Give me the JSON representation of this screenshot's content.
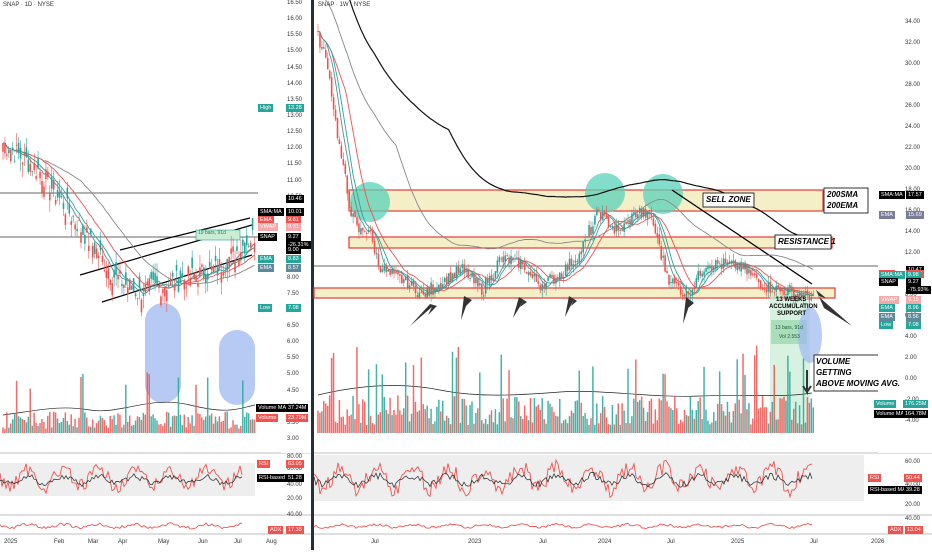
{
  "left_pane": {
    "header": "SNAP · 1D · NYSE",
    "price_axis_ticks": [
      "16.50",
      "16.00",
      "15.50",
      "15.00",
      "14.50",
      "14.00",
      "13.50",
      "13.00",
      "12.50",
      "12.00",
      "11.50",
      "11.00",
      "10.50",
      "10.00",
      "9.50",
      "9.00",
      "8.50",
      "8.00",
      "7.50",
      "7.00",
      "6.50",
      "6.00",
      "5.50",
      "5.00",
      "4.50",
      "4.00",
      "3.50",
      "3.00"
    ],
    "price_axis_range": [
      3.0,
      16.5
    ],
    "badges": [
      {
        "label": "High",
        "value": "13.28",
        "price": 13.28,
        "color": "#26a69a"
      },
      {
        "label": "",
        "value": "10.46",
        "price": 10.46,
        "color": "#000000"
      },
      {
        "label": "SMA:MA",
        "value": "10.01",
        "price": 10.05,
        "color": "#000000"
      },
      {
        "label": "EMA",
        "value": "9.81",
        "price": 9.82,
        "color": "#ef5350"
      },
      {
        "label": "VWAP",
        "value": "9.31",
        "price": 9.6,
        "color": "#f7a8a8"
      },
      {
        "label": "SNAP",
        "value": "9.27",
        "price": 9.3,
        "color": "#000000"
      },
      {
        "label": "",
        "value": "-26.31%",
        "price": 9.05,
        "color": "#000000"
      },
      {
        "label": "",
        "value": "9.00",
        "price": 8.88,
        "color": "#000000"
      },
      {
        "label": "EMA",
        "value": "8.83",
        "price": 8.6,
        "color": "#26a69a"
      },
      {
        "label": "EMA",
        "value": "8.57",
        "price": 8.33,
        "color": "#5c8a99"
      },
      {
        "label": "Low",
        "value": "7.08",
        "price": 7.08,
        "color": "#26a69a"
      }
    ],
    "volume_badges": [
      {
        "label": "Volume MA",
        "value": "37.24M",
        "color": "#000000"
      },
      {
        "label": "Volume",
        "value": "23.79M",
        "color": "#ef5350"
      }
    ],
    "time_axis": [
      "2025",
      "Feb",
      "Mar",
      "Apr",
      "May",
      "Jun",
      "Jul",
      "Aug"
    ],
    "rsi_ticks": [
      "80.00",
      "60.00",
      "40.00",
      "20.00"
    ],
    "rsi_badges": [
      {
        "label": "RSI",
        "value": "63.05",
        "color": "#ef5350"
      },
      {
        "label": "RSI-based MA",
        "value": "51.28",
        "color": "#000000"
      }
    ],
    "adx_ticks": [
      "40.00",
      "20.00"
    ],
    "adx_badge": {
      "label": "ADX",
      "value": "17.38",
      "color": "#ef5350"
    },
    "wedge_label": "19 bars, 91d"
  },
  "right_pane": {
    "header": "SNAP · 1W · NYSE",
    "price_axis_ticks": [
      "34.00",
      "32.00",
      "30.00",
      "28.00",
      "26.00",
      "24.00",
      "22.00",
      "20.00",
      "18.00",
      "16.00",
      "14.00",
      "12.00",
      "10.00",
      "8.00",
      "6.00",
      "4.00",
      "2.00",
      "0.00",
      "-2.00",
      "-4.00"
    ],
    "price_axis_range": [
      -4.0,
      35.0
    ],
    "badges": [
      {
        "label": "SMA:MA",
        "value": "17.57",
        "price": 17.57,
        "color": "#000000"
      },
      {
        "label": "EMA",
        "value": "15.69",
        "price": 15.69,
        "color": "#7b7b9a"
      },
      {
        "label": "",
        "value": "10.47",
        "price": 10.47,
        "color": "#000000"
      },
      {
        "label": "EMA",
        "value": "10.07",
        "price": 10.07,
        "color": "#ef5350"
      },
      {
        "label": "SMA:MA",
        "value": "9.98",
        "price": 9.98,
        "color": "#26a69a"
      },
      {
        "label": "SNAP",
        "value": "9.27",
        "price": 9.27,
        "color": "#000000"
      },
      {
        "label": "",
        "value": "-75.93%",
        "price": 8.55,
        "color": "#000000"
      },
      {
        "label": "VWAP",
        "value": "9.15",
        "price": 7.65,
        "color": "#f7a8a8"
      },
      {
        "label": "EMA",
        "value": "8.96",
        "price": 6.8,
        "color": "#26a69a"
      },
      {
        "label": "EMA",
        "value": "8.56",
        "price": 6.0,
        "color": "#5c8a99"
      },
      {
        "label": "Low",
        "value": "7.08",
        "price": 5.2,
        "color": "#26a69a"
      }
    ],
    "volume_badges": [
      {
        "label": "Volume",
        "value": "176.25M",
        "color": "#26a69a"
      },
      {
        "label": "Volume MA",
        "value": "164.78M",
        "color": "#000000"
      }
    ],
    "time_axis": [
      "Jul",
      "2023",
      "Jul",
      "2024",
      "Jul",
      "2025",
      "Jul",
      "2026"
    ],
    "rsi_ticks": [
      "60.00",
      "40.00",
      "20.00"
    ],
    "rsi_badges": [
      {
        "label": "RSI",
        "value": "50.44",
        "color": "#ef5350"
      },
      {
        "label": "RSI-based MA",
        "value": "39.28",
        "color": "#000000"
      }
    ],
    "adx_ticks": [
      "40.00"
    ],
    "adx_badge": {
      "label": "ADX",
      "value": "13.04",
      "color": "#ef5350"
    },
    "annotations": {
      "sell_zone": "SELL ZONE",
      "ma_label_1": "200SMA",
      "ma_label_2": "200EMA",
      "resistance": "RESISTANCE 1",
      "accumulation_1": "13 WEEKS",
      "accumulation_2": "ACCUMULATION",
      "accumulation_3": "SUPPORT",
      "bars_label_1": "13 bars, 91d",
      "bars_label_2": "Vol 2.553",
      "volume_1": "VOLUME",
      "volume_2": "GETTING",
      "volume_3": "ABOVE MOVING AVG."
    }
  },
  "colors": {
    "up": "#26a69a",
    "down": "#ef5350",
    "zone_fill": "#f5efc8",
    "zone_border": "#e53935",
    "circle": "#5ad1b9",
    "blue_pill": "#9db8f0"
  },
  "chart_data": [
    {
      "type": "line",
      "title": "SNAP · 1D · NYSE",
      "xlabel": "",
      "ylabel": "",
      "ylim": [
        3.0,
        16.5
      ],
      "x": [
        "2025",
        "Feb",
        "Mar",
        "Apr",
        "May",
        "Jun",
        "Jul"
      ],
      "series": [
        {
          "name": "SNAP",
          "values": [
            12.0,
            11.2,
            9.6,
            8.0,
            8.3,
            8.0,
            9.27
          ]
        }
      ]
    },
    {
      "type": "line",
      "title": "SNAP · 1W · NYSE",
      "xlabel": "",
      "ylabel": "",
      "ylim": [
        -4.0,
        35.0
      ],
      "x": [
        "Jul",
        "2023",
        "Jul",
        "2024",
        "Jul",
        "2025",
        "Jul"
      ],
      "series": [
        {
          "name": "SNAP",
          "values": [
            12.0,
            9.5,
            9.5,
            15.5,
            8.5,
            11.0,
            9.27
          ]
        }
      ]
    }
  ]
}
